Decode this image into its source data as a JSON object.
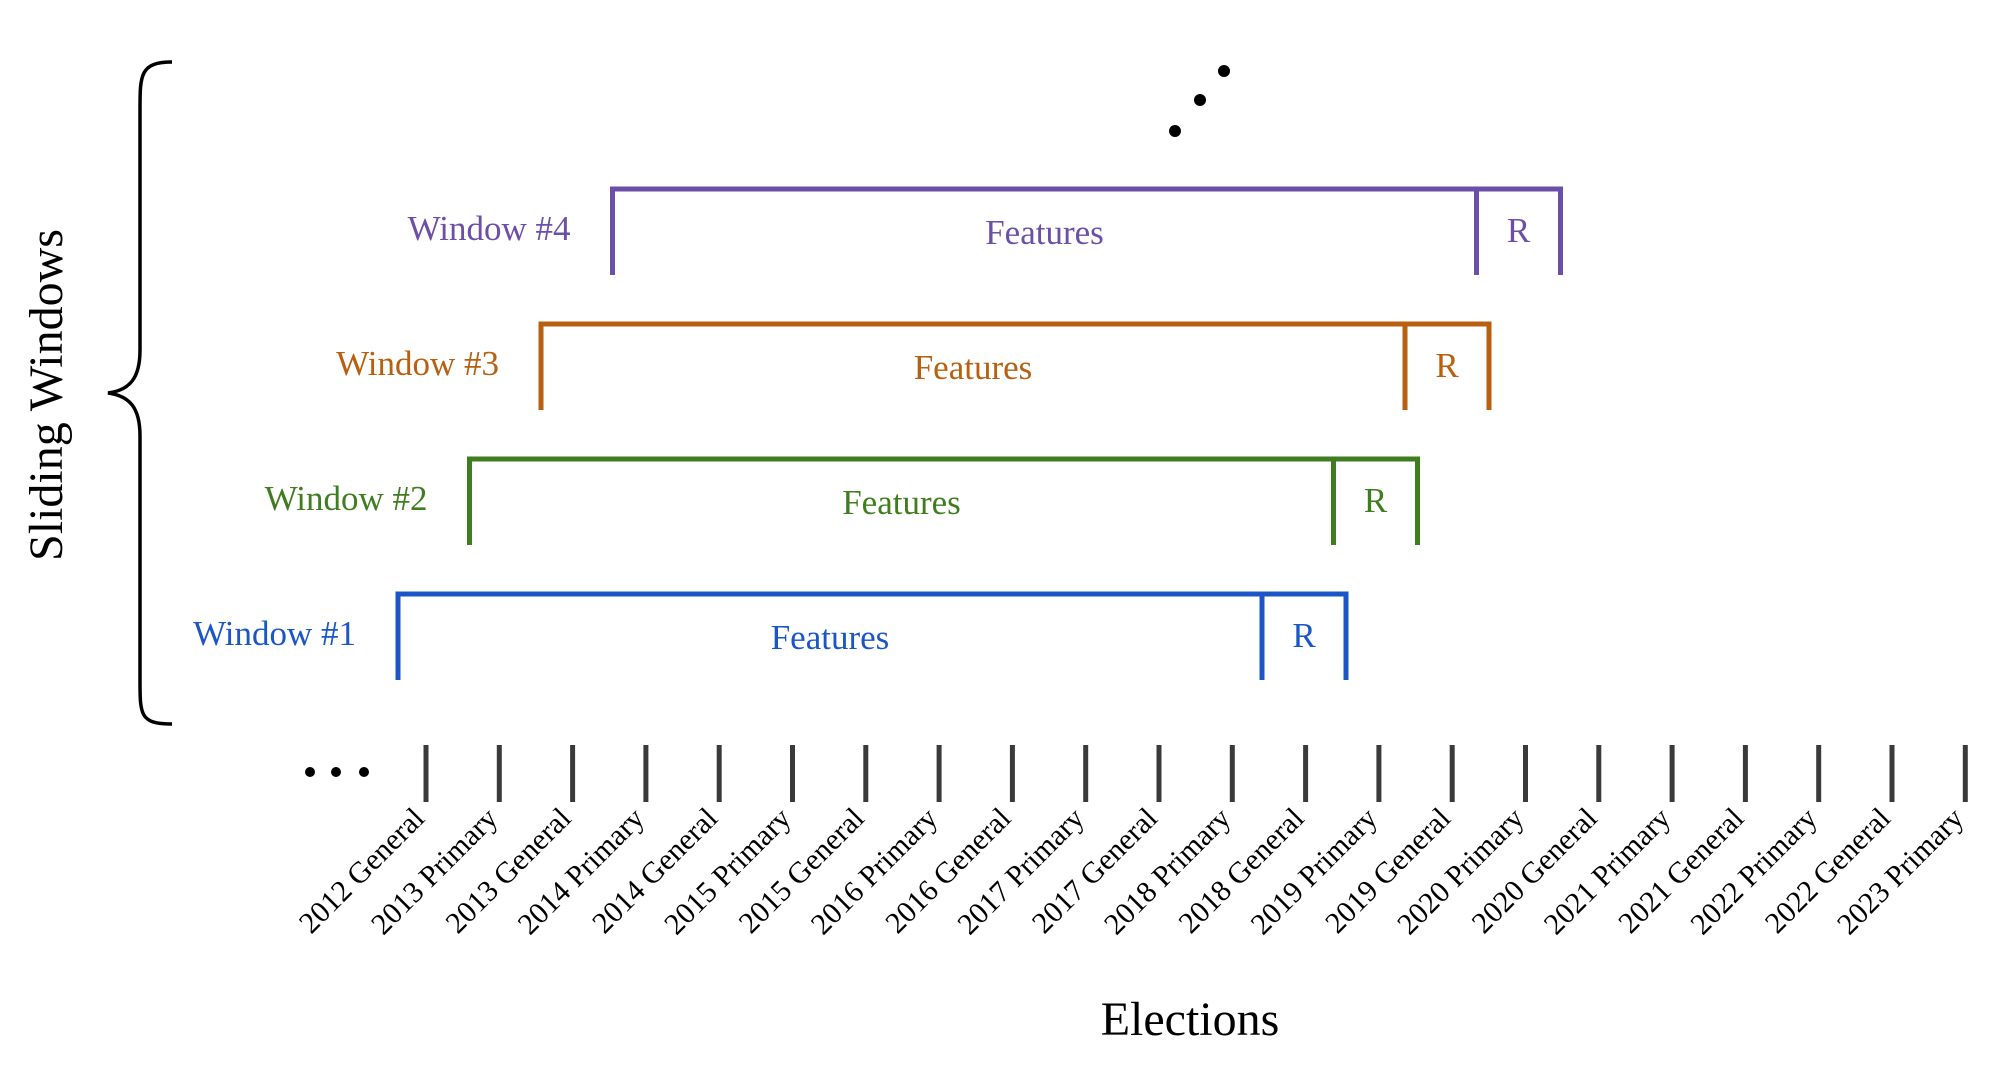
{
  "diagram": {
    "y_axis_label": "Sliding Windows",
    "x_axis_label": "Elections",
    "continuation_left": "• • •",
    "continuation_up": "...",
    "ticks": [
      "2012 General",
      "2013 Primary",
      "2013 General",
      "2014 Primary",
      "2014 General",
      "2015 Primary",
      "2015 General",
      "2016 Primary",
      "2016 General",
      "2017 Primary",
      "2017 General",
      "2018 Primary",
      "2018 General",
      "2019 Primary",
      "2019 General",
      "2020 Primary",
      "2020 General",
      "2021 Primary",
      "2021 General",
      "2022 Primary",
      "2022 General",
      "2023 Primary"
    ],
    "windows": [
      {
        "label": "Window #1",
        "features_label": "Features",
        "r_label": "R",
        "color": "#1a56c8"
      },
      {
        "label": "Window #2",
        "features_label": "Features",
        "r_label": "R",
        "color": "#3f7d20"
      },
      {
        "label": "Window #3",
        "features_label": "Features",
        "r_label": "R",
        "color": "#b8600f"
      },
      {
        "label": "Window #4",
        "features_label": "Features",
        "r_label": "R",
        "color": "#6b4fa8"
      }
    ]
  }
}
